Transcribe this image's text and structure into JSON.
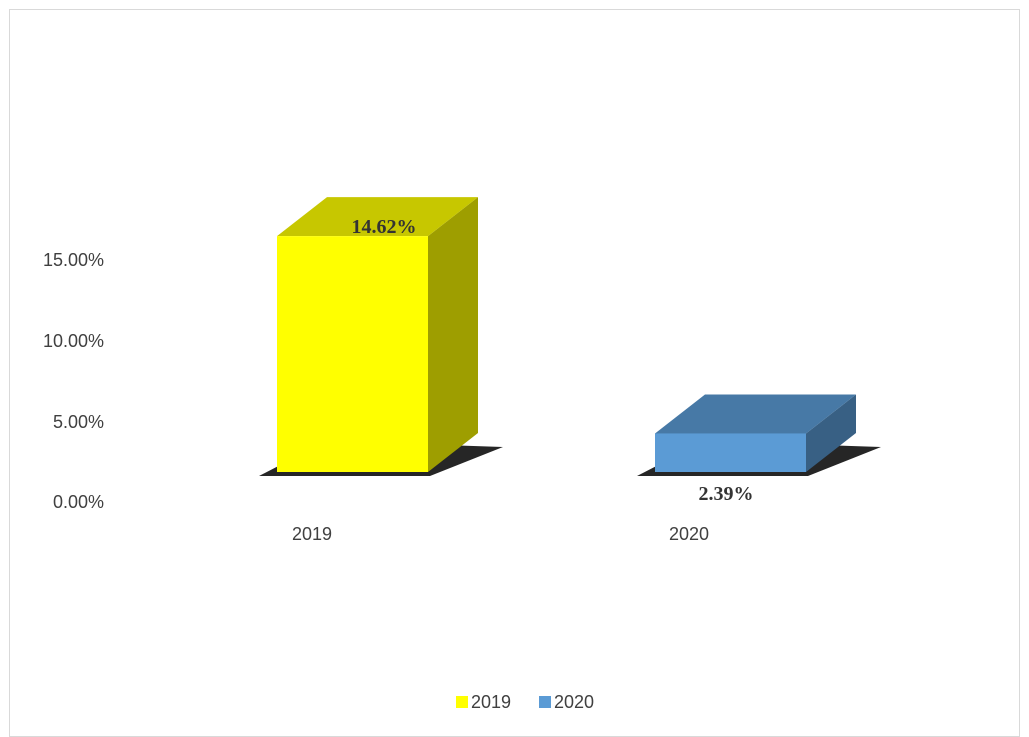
{
  "chart_data": {
    "type": "bar",
    "title": "",
    "xlabel": "",
    "ylabel": "",
    "categories": [
      "2019",
      "2020"
    ],
    "values": [
      0.1462,
      0.0239
    ],
    "data_labels": [
      "14.62%",
      "2.39%"
    ],
    "y_ticks": [
      "0.00%",
      "5.00%",
      "10.00%",
      "15.00%"
    ],
    "y_tick_values": [
      0,
      0.05,
      0.1,
      0.15
    ],
    "ylim": [
      0,
      0.15
    ],
    "grid": false,
    "style": "3d-column",
    "colors": [
      "#ffff00",
      "#5b9bd5"
    ],
    "legend_position": "bottom",
    "legend": [
      {
        "label": "2019",
        "color": "#ffff00"
      },
      {
        "label": "2020",
        "color": "#5b9bd5"
      }
    ]
  }
}
